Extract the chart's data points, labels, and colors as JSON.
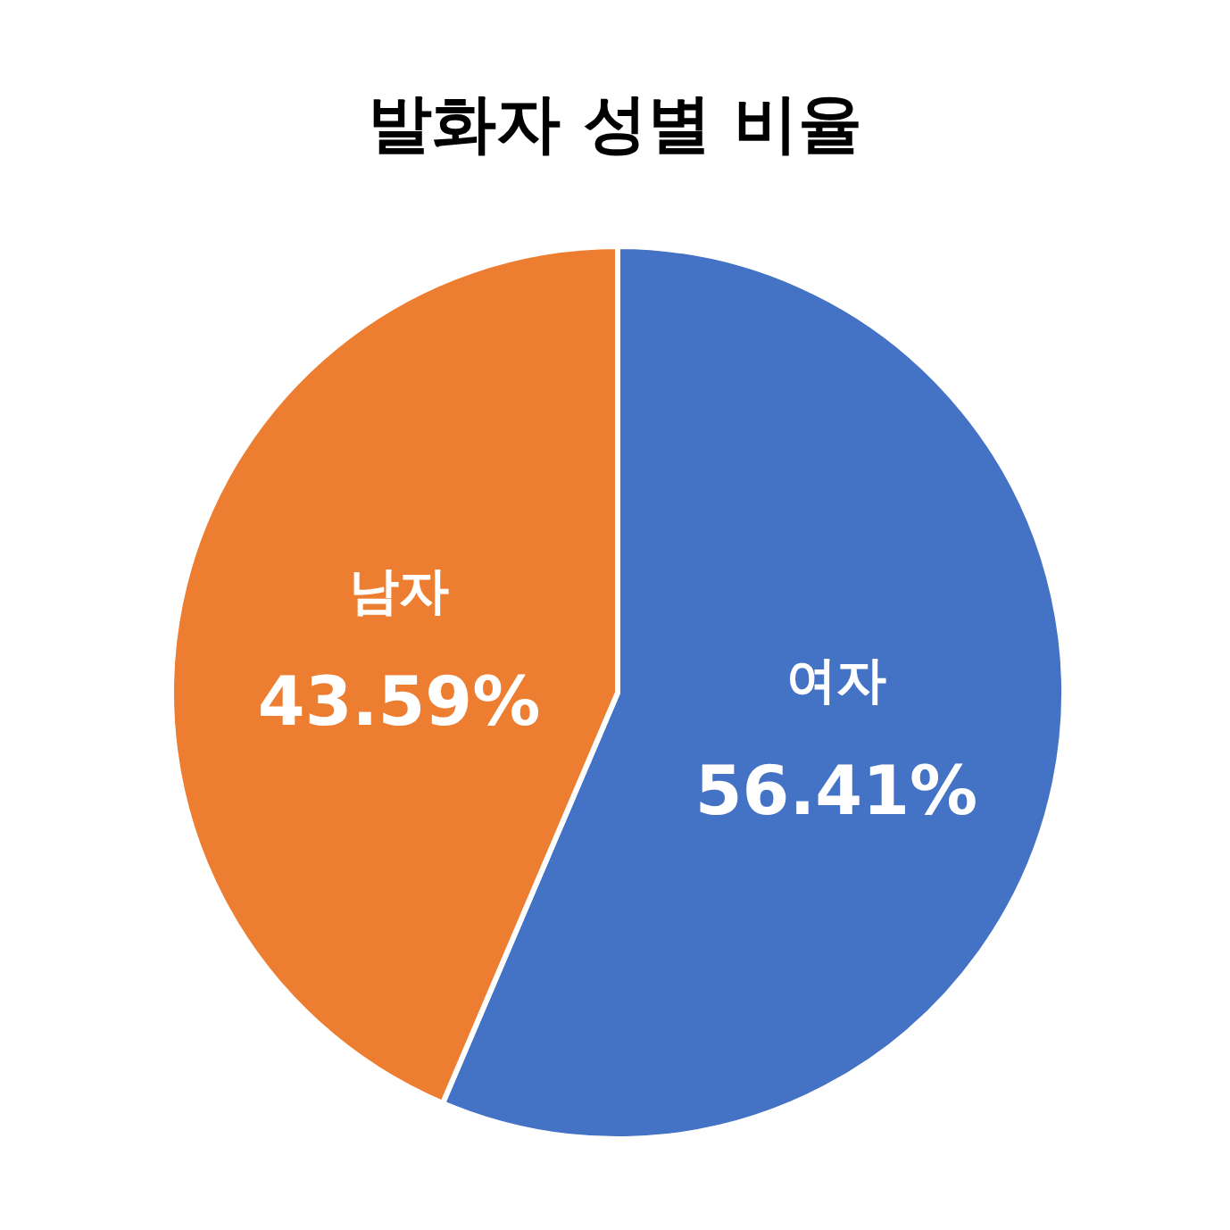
{
  "chart_data": {
    "type": "pie",
    "title": "발화자 성별 비율",
    "categories": [
      "여자",
      "남자"
    ],
    "values": [
      56.41,
      43.59
    ],
    "colors": [
      "#4472c4",
      "#ed7d31"
    ],
    "value_labels": [
      "56.41%",
      "43.59%"
    ]
  }
}
